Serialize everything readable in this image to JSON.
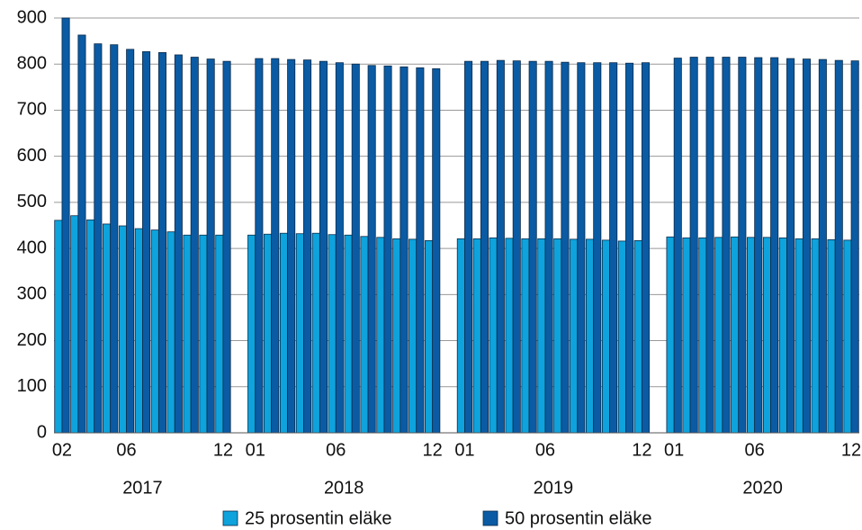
{
  "chart_data": {
    "type": "bar",
    "groups": [
      {
        "label": "2017",
        "categories": [
          "02",
          null,
          null,
          null,
          "06",
          null,
          null,
          null,
          null,
          null,
          "12"
        ]
      },
      {
        "label": "2018",
        "categories": [
          "01",
          null,
          null,
          null,
          null,
          "06",
          null,
          null,
          null,
          null,
          null,
          "12"
        ]
      },
      {
        "label": "2019",
        "categories": [
          "01",
          null,
          null,
          null,
          null,
          "06",
          null,
          null,
          null,
          null,
          null,
          "12"
        ]
      },
      {
        "label": "2020",
        "categories": [
          "01",
          null,
          null,
          null,
          null,
          "06",
          null,
          null,
          null,
          null,
          null,
          "12"
        ]
      }
    ],
    "series": [
      {
        "name": "25 prosentin eläke",
        "color": "#0ea3dc",
        "values": [
          461,
          471,
          462,
          453,
          449,
          443,
          440,
          436,
          429,
          429,
          429,
          429,
          431,
          433,
          432,
          433,
          430,
          429,
          426,
          424,
          421,
          420,
          417,
          421,
          421,
          423,
          422,
          421,
          421,
          421,
          420,
          420,
          418,
          416,
          417,
          425,
          423,
          423,
          424,
          425,
          424,
          424,
          423,
          421,
          421,
          419,
          418
        ]
      },
      {
        "name": "50 prosentin eläke",
        "color": "#0a5ba3",
        "values": [
          900,
          863,
          844,
          842,
          832,
          827,
          825,
          820,
          815,
          811,
          806,
          812,
          812,
          810,
          809,
          806,
          803,
          800,
          797,
          796,
          794,
          792,
          790,
          806,
          806,
          808,
          807,
          806,
          806,
          804,
          803,
          803,
          803,
          802,
          803,
          813,
          815,
          815,
          815,
          815,
          814,
          814,
          812,
          811,
          810,
          808,
          807
        ]
      }
    ],
    "ylim": [
      0,
      900
    ],
    "yticks": [
      0,
      100,
      200,
      300,
      400,
      500,
      600,
      700,
      800,
      900
    ],
    "grid": true,
    "legend": "bottom"
  }
}
